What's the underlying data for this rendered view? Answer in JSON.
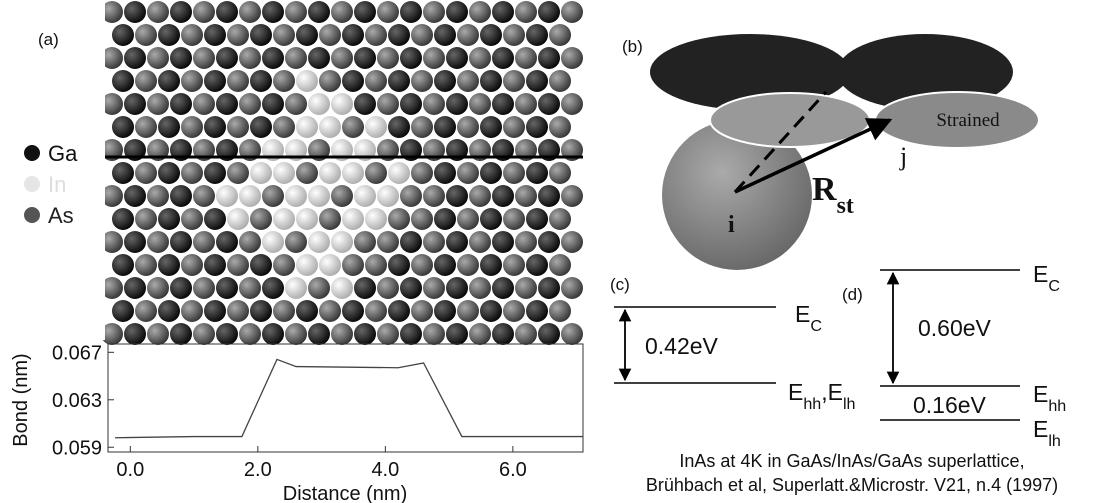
{
  "panel_a": {
    "label": "(a)",
    "legend": [
      "Ga",
      "In",
      "As"
    ]
  },
  "chart_data": {
    "type": "line",
    "y_label": "Bond (nm)",
    "x_label": "Distance (nm)",
    "x": [
      -0.24,
      1.0,
      1.75,
      2.3,
      2.6,
      4.2,
      4.6,
      5.2,
      7.1
    ],
    "series": [
      {
        "color": "#444444",
        "values": [
          0.0598,
          0.0599,
          0.0599,
          0.0664,
          0.0658,
          0.0657,
          0.0661,
          0.0599,
          0.0599
        ]
      }
    ],
    "xlim": [
      -0.35,
      7.1
    ],
    "ylim": [
      0.0586,
      0.0677
    ],
    "xticks": [
      {
        "value": 0,
        "label": "0.0"
      },
      {
        "value": 2,
        "label": "2.0"
      },
      {
        "value": 4,
        "label": "4.0"
      },
      {
        "value": 6,
        "label": "6.0"
      }
    ],
    "yticks": [
      0.059,
      0.063,
      0.067
    ]
  },
  "panel_b": {
    "label": "(b)",
    "ellipse_label": "Strained",
    "vector": [
      {
        "text": "R",
        "sub": "st"
      }
    ],
    "site_j": "j",
    "site_i": "i"
  },
  "panel_c": {
    "label": "(c)",
    "top": [
      {
        "text": "E",
        "sub": "C"
      }
    ],
    "bottom": [
      {
        "text": "E",
        "sub": "hh"
      },
      {
        "text": ",E",
        "sub": "lh"
      }
    ],
    "gap": "0.42eV"
  },
  "panel_d": {
    "label": "(d)",
    "top": [
      {
        "text": "E",
        "sub": "C"
      }
    ],
    "middle": [
      {
        "text": "E",
        "sub": "hh"
      }
    ],
    "bottom": [
      {
        "text": "E",
        "sub": "lh"
      }
    ],
    "gap": "0.60eV",
    "split": "0.16eV"
  },
  "caption": [
    "InAs at 4K in GaAs/InAs/GaAs superlattice,",
    "Brühbach et al, Superlatt.&Microstr. V21, n.4 (1997)"
  ]
}
